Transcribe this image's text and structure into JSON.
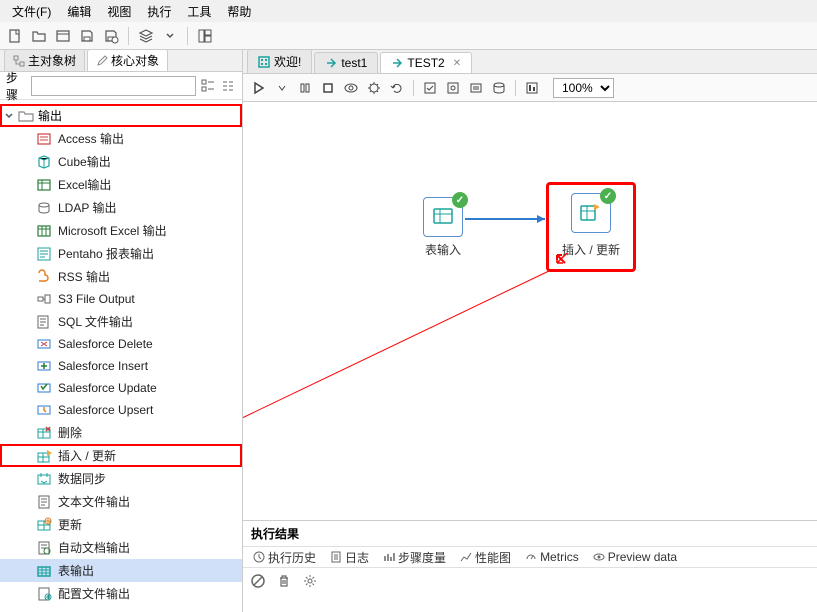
{
  "menu": {
    "file": "文件(F)",
    "edit": "编辑",
    "view": "视图",
    "execute": "执行",
    "tools": "工具",
    "help": "帮助"
  },
  "left_tabs": {
    "main": "主对象树",
    "core": "核心对象"
  },
  "search": {
    "label": "步骤",
    "placeholder": ""
  },
  "tree": {
    "folder": "输出",
    "items": [
      "Access 输出",
      "Cube输出",
      "Excel输出",
      "LDAP 输出",
      "Microsoft Excel 输出",
      "Pentaho 报表输出",
      "RSS 输出",
      "S3 File Output",
      "SQL 文件输出",
      "Salesforce Delete",
      "Salesforce Insert",
      "Salesforce Update",
      "Salesforce Upsert",
      "删除",
      "插入 / 更新",
      "数据同步",
      "文本文件输出",
      "更新",
      "自动文档输出",
      "表输出",
      "配置文件输出"
    ],
    "highlight_index": 14
  },
  "editor_tabs": {
    "welcome": "欢迎!",
    "t1": "test1",
    "t2": "TEST2"
  },
  "zoom": "100%",
  "nodes": {
    "input": "表输入",
    "insert_update": "插入 / 更新"
  },
  "results": {
    "title": "执行结果",
    "tabs": {
      "history": "执行历史",
      "log": "日志",
      "step": "步骤度量",
      "perf": "性能图",
      "metrics": "Metrics",
      "preview": "Preview data"
    }
  },
  "colors": {
    "highlight": "#ff0000",
    "node_border": "#5a8fd0",
    "badge": "#4caf50",
    "icon_teal": "#1ba39c",
    "icon_blue": "#2e7bcf"
  }
}
